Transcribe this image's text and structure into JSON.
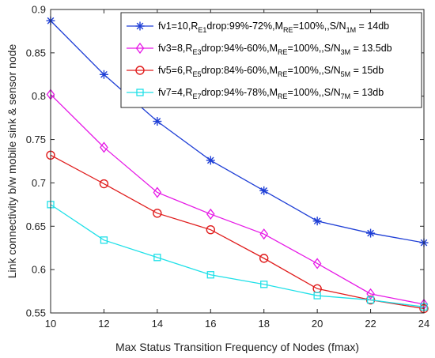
{
  "chart_data": {
    "type": "line",
    "xlabel": "Max Status Transition Frequency of Nodes (fmax)",
    "ylabel": "Link connectivity b/w mobile sink & sensor node",
    "xlim": [
      10,
      24
    ],
    "ylim": [
      0.55,
      0.9
    ],
    "x_ticks": [
      10,
      12,
      14,
      16,
      18,
      20,
      22,
      24
    ],
    "y_ticks": [
      0.55,
      0.6,
      0.65,
      0.7,
      0.75,
      0.8,
      0.85,
      0.9
    ],
    "grid": false,
    "legend_position": "top-right",
    "x": [
      10,
      12,
      14,
      16,
      18,
      20,
      22,
      24
    ],
    "series": [
      {
        "name": "fv1=10,R_E1 drop:99%-72%,M_RE=100%,,S/N_1M = 14db",
        "legend_parts": [
          [
            "fv1=10,R",
            ""
          ],
          [
            "E1",
            "sub"
          ],
          [
            "drop:99%-72%,M",
            ""
          ],
          [
            "RE",
            "sub"
          ],
          [
            "=100%,,S/N",
            ""
          ],
          [
            "1M",
            "sub"
          ],
          [
            " = 14db",
            ""
          ]
        ],
        "color": "#1f3fd6",
        "marker": "star",
        "values": [
          0.887,
          0.825,
          0.771,
          0.726,
          0.691,
          0.656,
          0.642,
          0.631
        ]
      },
      {
        "name": "fv3=8,R_E3 drop:94%-60%,M_RE=100%,,S/N_3M = 13.5db",
        "legend_parts": [
          [
            "fv3=8,R",
            ""
          ],
          [
            "E3",
            "sub"
          ],
          [
            "drop:94%-60%,M",
            ""
          ],
          [
            "RE",
            "sub"
          ],
          [
            "=100%,,S/N",
            ""
          ],
          [
            "3M",
            "sub"
          ],
          [
            " = 13.5db",
            ""
          ]
        ],
        "color": "#e619e6",
        "marker": "diamond",
        "values": [
          0.802,
          0.741,
          0.689,
          0.664,
          0.641,
          0.607,
          0.572,
          0.56
        ]
      },
      {
        "name": "fv5=6,R_E5 drop:84%-60%,M_RE=100%,,S/N_5M = 15db",
        "legend_parts": [
          [
            "fv5=6,R",
            ""
          ],
          [
            "E5",
            "sub"
          ],
          [
            "drop:84%-60%,M",
            ""
          ],
          [
            "RE",
            "sub"
          ],
          [
            "=100%,,S/N",
            ""
          ],
          [
            "5M",
            "sub"
          ],
          [
            " = 15db",
            ""
          ]
        ],
        "color": "#e01d1d",
        "marker": "circle",
        "values": [
          0.732,
          0.699,
          0.665,
          0.646,
          0.613,
          0.578,
          0.565,
          0.555
        ]
      },
      {
        "name": "fv7=4,R_E7 drop:94%-78%,M_RE=100%,,S/N_7M = 13db",
        "legend_parts": [
          [
            "fv7=4,R",
            ""
          ],
          [
            "E7",
            "sub"
          ],
          [
            "drop:94%-78%,M",
            ""
          ],
          [
            "RE",
            "sub"
          ],
          [
            "=100%,,S/N",
            ""
          ],
          [
            "7M",
            "sub"
          ],
          [
            " = 13db",
            ""
          ]
        ],
        "color": "#1fe0e8",
        "marker": "square",
        "values": [
          0.675,
          0.634,
          0.614,
          0.594,
          0.583,
          0.57,
          0.565,
          0.557
        ]
      }
    ]
  }
}
